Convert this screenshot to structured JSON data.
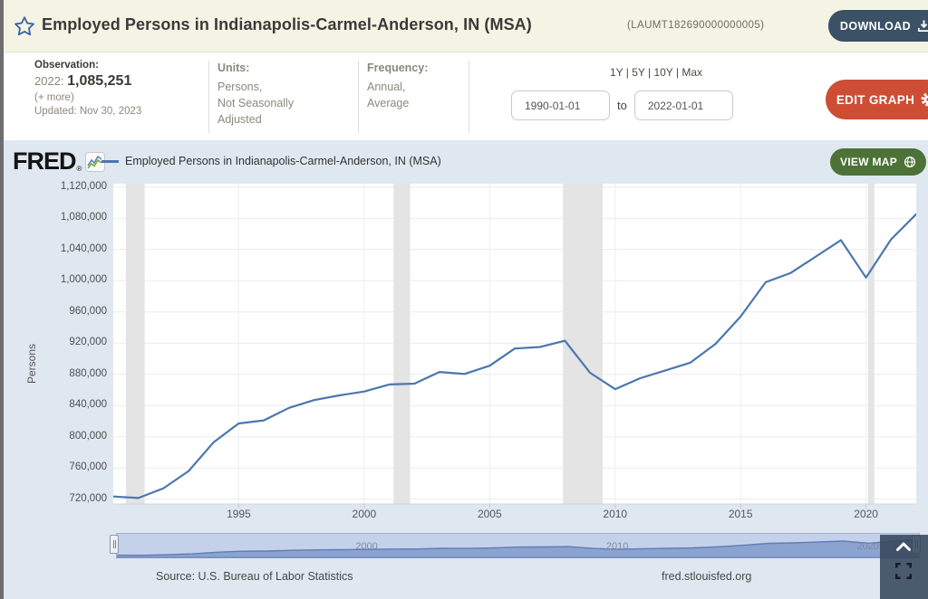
{
  "header": {
    "title": "Employed Persons in Indianapolis-Carmel-Anderson, IN (MSA)",
    "series_id": "(LAUMT182690000000005)",
    "download_label": "DOWNLOAD"
  },
  "info_bar": {
    "observation": {
      "label": "Observation:",
      "date_prefix": "2022: ",
      "value": "1,085,251",
      "more_link": "(+ more)",
      "updated": "Updated: Nov 30, 2023"
    },
    "units": {
      "label": "Units:",
      "line1": "Persons,",
      "line2": "Not Seasonally",
      "line3": "Adjusted"
    },
    "frequency": {
      "label": "Frequency:",
      "line1": "Annual,",
      "line2": "Average"
    },
    "range_presets": "1Y | 5Y | 10Y | Max",
    "date_from": "1990-01-01",
    "to_label": "to",
    "date_to": "2022-01-01",
    "edit_graph_label": "EDIT GRAPH"
  },
  "graph": {
    "brand": "FRED",
    "brand_reg": "®",
    "legend_label": "Employed Persons in Indianapolis-Carmel-Anderson, IN (MSA)",
    "view_map_label": "VIEW MAP",
    "source": "Source: U.S. Bureau of Labor Statistics",
    "site": "fred.stlouisfed.org",
    "slider_years": [
      2000,
      2010,
      2020
    ]
  },
  "chart_data": {
    "type": "line",
    "title": "Employed Persons in Indianapolis-Carmel-Anderson, IN (MSA)",
    "ylabel": "Persons",
    "x": [
      1990,
      1991,
      1992,
      1993,
      1994,
      1995,
      1996,
      1997,
      1998,
      1999,
      2000,
      2001,
      2002,
      2003,
      2004,
      2005,
      2006,
      2007,
      2008,
      2009,
      2010,
      2011,
      2012,
      2013,
      2014,
      2015,
      2016,
      2017,
      2018,
      2019,
      2020,
      2021,
      2022
    ],
    "values": [
      723500,
      721500,
      734000,
      756000,
      793000,
      817000,
      821000,
      837000,
      847000,
      853000,
      858000,
      867000,
      868000,
      883000,
      880500,
      891000,
      913000,
      915000,
      923000,
      882000,
      861000,
      875000,
      885000,
      895000,
      919000,
      954000,
      998000,
      1010000,
      1031000,
      1052000,
      1004000,
      1053000,
      1085251
    ],
    "ylim": [
      720000,
      1120000
    ],
    "ytick_step": 40000,
    "xticks": [
      1995,
      2000,
      2005,
      2010,
      2015,
      2020
    ],
    "recessions": [
      [
        1990.5,
        1991.25
      ],
      [
        2001.17,
        2001.83
      ],
      [
        2007.92,
        2009.5
      ],
      [
        2020.08,
        2020.33
      ]
    ],
    "line_color": "#4a77ad",
    "grid": true,
    "legend_position": "top-left",
    "units_note": "Persons, Not Seasonally Adjusted, Annual, Average"
  },
  "colors": {
    "header_bg": "#f4f4e4",
    "graph_bg": "#dfe8f1",
    "line": "#4a77ad",
    "recession_band": "#e4e4e4",
    "download_btn": "#3a5166",
    "edit_btn": "#cd4d35",
    "view_map_btn": "#4c7238",
    "slider_track": "#c5d1ea",
    "slider_fill": "#8ba3d1"
  }
}
